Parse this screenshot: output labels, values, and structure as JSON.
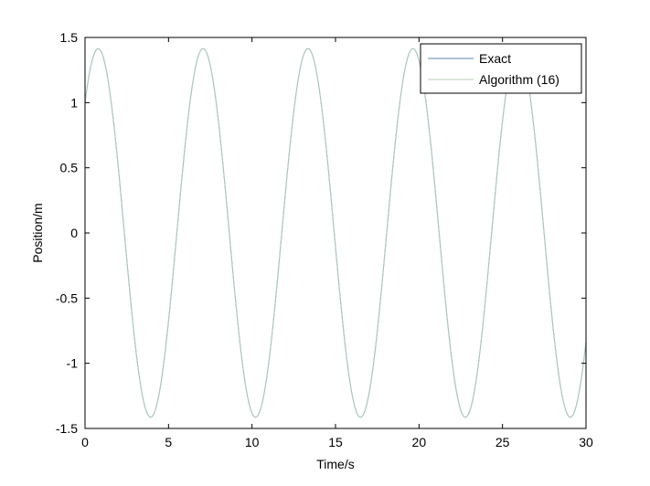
{
  "chart_data": {
    "type": "line",
    "title": "",
    "xlabel": "Time/s",
    "ylabel": "Position/m",
    "xlim": [
      0,
      30
    ],
    "ylim": [
      -1.5,
      1.5
    ],
    "x_ticks": [
      0,
      5,
      10,
      15,
      20,
      25,
      30
    ],
    "y_ticks": [
      -1.5,
      -1,
      -0.5,
      0,
      0.5,
      1,
      1.5
    ],
    "x_tick_labels": [
      "0",
      "5",
      "10",
      "15",
      "20",
      "25",
      "30"
    ],
    "y_tick_labels": [
      "-1.5",
      "-1",
      "-0.5",
      "0",
      "0.5",
      "1",
      "1.5"
    ],
    "grid": false,
    "legend_position": "top-right",
    "series": [
      {
        "name": "Exact",
        "color": "#5b86b3",
        "model": {
          "amplitude": 1.414,
          "angular_frequency": 1.0,
          "phase": 0.785
        },
        "x": [
          0,
          0.785,
          2.356,
          3.927,
          5.498,
          7.069,
          8.639,
          10.21,
          11.781,
          13.352,
          14.923,
          16.493,
          18.064,
          19.635,
          21.206,
          22.777,
          24.347,
          25.918,
          27.489,
          29.06,
          30
        ],
        "y": [
          1.0,
          1.414,
          0,
          -1.414,
          0,
          1.414,
          0,
          -1.414,
          0,
          1.414,
          0,
          -1.414,
          0,
          1.414,
          0,
          -1.414,
          0,
          1.414,
          0,
          -1.414,
          -0.83
        ]
      },
      {
        "name": "Algorithm (16)",
        "color": "#b8d2b8",
        "model": {
          "amplitude": 1.414,
          "angular_frequency": 1.0,
          "phase": 0.785
        },
        "x": [
          0,
          0.785,
          2.356,
          3.927,
          5.498,
          7.069,
          8.639,
          10.21,
          11.781,
          13.352,
          14.923,
          16.493,
          18.064,
          19.635,
          21.206,
          22.777,
          24.347,
          25.918,
          27.489,
          29.06,
          30
        ],
        "y": [
          1.0,
          1.414,
          0,
          -1.414,
          0,
          1.414,
          0,
          -1.414,
          0,
          1.414,
          0,
          -1.414,
          0,
          1.414,
          0,
          -1.414,
          0,
          1.414,
          0,
          -1.414,
          -0.83
        ]
      }
    ]
  }
}
